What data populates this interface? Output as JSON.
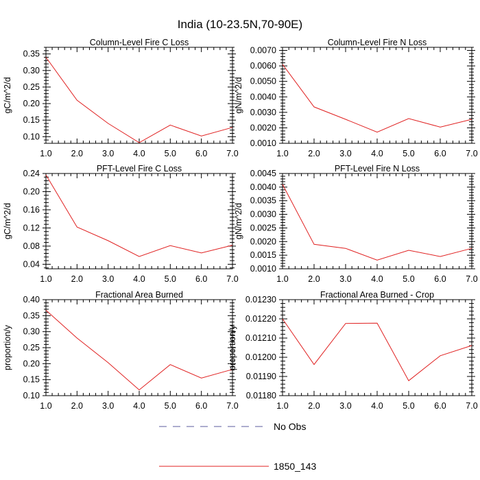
{
  "figure": {
    "title": "India (10-23.5N,70-90E)",
    "legend": [
      {
        "label": "No Obs",
        "color": "#5a5a9e",
        "dash": "dashed"
      },
      {
        "label": "1850_143",
        "color": "#e02020",
        "dash": "solid"
      }
    ]
  },
  "chart_data": [
    {
      "type": "line",
      "title": "Column-Level Fire C Loss",
      "xlabel": "",
      "ylabel": "gC/m^2/d",
      "x": [
        1,
        2,
        3,
        4,
        5,
        6,
        7
      ],
      "xlim": [
        1,
        7
      ],
      "xticks": [
        "1.0",
        "2.0",
        "3.0",
        "4.0",
        "5.0",
        "6.0",
        "7.0"
      ],
      "ylim": [
        0.08,
        0.37
      ],
      "yticks": [
        "0.10",
        "0.15",
        "0.20",
        "0.25",
        "0.30",
        "0.35"
      ],
      "series": [
        {
          "name": "1850_143",
          "color": "#e02020",
          "values": [
            0.34,
            0.21,
            0.14,
            0.082,
            0.135,
            0.102,
            0.128
          ]
        }
      ]
    },
    {
      "type": "line",
      "title": "Column-Level Fire N Loss",
      "xlabel": "",
      "ylabel": "gN/m^2/d",
      "x": [
        1,
        2,
        3,
        4,
        5,
        6,
        7
      ],
      "xlim": [
        1,
        7
      ],
      "xticks": [
        "1.0",
        "2.0",
        "3.0",
        "4.0",
        "5.0",
        "6.0",
        "7.0"
      ],
      "ylim": [
        0.001,
        0.0072
      ],
      "yticks": [
        "0.0010",
        "0.0020",
        "0.0030",
        "0.0040",
        "0.0050",
        "0.0060",
        "0.0070"
      ],
      "series": [
        {
          "name": "1850_143",
          "color": "#e02020",
          "values": [
            0.0061,
            0.00335,
            0.00255,
            0.00172,
            0.0026,
            0.00205,
            0.00255
          ]
        }
      ]
    },
    {
      "type": "line",
      "title": "PFT-Level Fire C Loss",
      "xlabel": "",
      "ylabel": "gC/m^2/d",
      "x": [
        1,
        2,
        3,
        4,
        5,
        6,
        7
      ],
      "xlim": [
        1,
        7
      ],
      "xticks": [
        "1.0",
        "2.0",
        "3.0",
        "4.0",
        "5.0",
        "6.0",
        "7.0"
      ],
      "ylim": [
        0.03,
        0.24
      ],
      "yticks": [
        "0.04",
        "0.08",
        "0.12",
        "0.16",
        "0.20",
        "0.24"
      ],
      "series": [
        {
          "name": "1850_143",
          "color": "#e02020",
          "values": [
            0.237,
            0.122,
            0.092,
            0.057,
            0.081,
            0.065,
            0.082
          ]
        }
      ]
    },
    {
      "type": "line",
      "title": "PFT-Level Fire N Loss",
      "xlabel": "",
      "ylabel": "gN/m^2/d",
      "x": [
        1,
        2,
        3,
        4,
        5,
        6,
        7
      ],
      "xlim": [
        1,
        7
      ],
      "xticks": [
        "1.0",
        "2.0",
        "3.0",
        "4.0",
        "5.0",
        "6.0",
        "7.0"
      ],
      "ylim": [
        0.001,
        0.0045
      ],
      "yticks": [
        "0.0010",
        "0.0015",
        "0.0020",
        "0.0025",
        "0.0030",
        "0.0035",
        "0.0040",
        "0.0045"
      ],
      "series": [
        {
          "name": "1850_143",
          "color": "#e02020",
          "values": [
            0.0041,
            0.0019,
            0.00175,
            0.00132,
            0.00168,
            0.00145,
            0.00175
          ]
        }
      ]
    },
    {
      "type": "line",
      "title": "Fractional Area Burned",
      "xlabel": "",
      "ylabel": "proportion/y",
      "x": [
        1,
        2,
        3,
        4,
        5,
        6,
        7
      ],
      "xlim": [
        1,
        7
      ],
      "xticks": [
        "1.0",
        "2.0",
        "3.0",
        "4.0",
        "5.0",
        "6.0",
        "7.0"
      ],
      "ylim": [
        0.1,
        0.4
      ],
      "yticks": [
        "0.10",
        "0.15",
        "0.20",
        "0.25",
        "0.30",
        "0.35",
        "0.40"
      ],
      "series": [
        {
          "name": "1850_143",
          "color": "#e02020",
          "values": [
            0.367,
            0.28,
            0.203,
            0.118,
            0.197,
            0.155,
            0.182
          ]
        }
      ]
    },
    {
      "type": "line",
      "title": "Fractional Area Burned - Crop",
      "xlabel": "",
      "ylabel": "proportion/y",
      "x": [
        1,
        2,
        3,
        4,
        5,
        6,
        7
      ],
      "xlim": [
        1,
        7
      ],
      "xticks": [
        "1.0",
        "2.0",
        "3.0",
        "4.0",
        "5.0",
        "6.0",
        "7.0"
      ],
      "ylim": [
        0.0118,
        0.0123
      ],
      "yticks": [
        "0.01180",
        "0.01190",
        "0.01200",
        "0.01210",
        "0.01220",
        "0.01230"
      ],
      "series": [
        {
          "name": "1850_143",
          "color": "#e02020",
          "values": [
            0.0122,
            0.011962,
            0.012176,
            0.012178,
            0.011878,
            0.012008,
            0.012061
          ]
        }
      ]
    }
  ]
}
